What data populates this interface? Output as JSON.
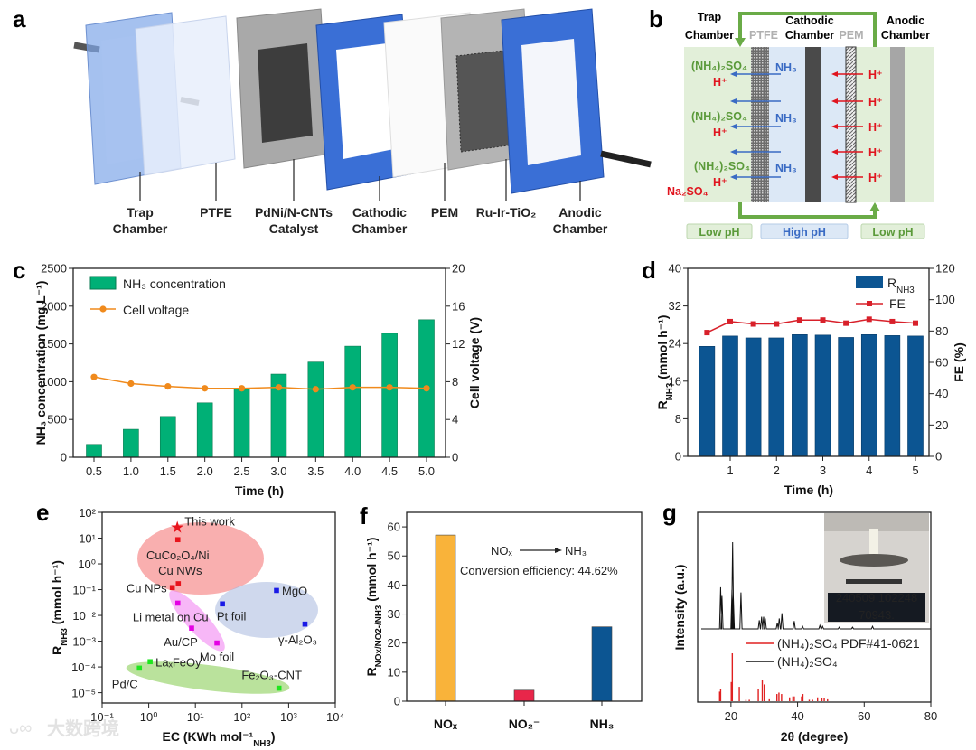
{
  "panel_labels": {
    "a": "a",
    "b": "b",
    "c": "c",
    "d": "d",
    "e": "e",
    "f": "f",
    "g": "g"
  },
  "panel_a": {
    "labels": [
      {
        "l1": "Trap",
        "l2": "Chamber"
      },
      {
        "l1": "PTFE",
        "l2": ""
      },
      {
        "l1": "PdNi/N-CNTs",
        "l2": "Catalyst"
      },
      {
        "l1": "Cathodic",
        "l2": "Chamber"
      },
      {
        "l1": "PEM",
        "l2": ""
      },
      {
        "l1": "Ru-Ir-TiO₂",
        "l2": ""
      },
      {
        "l1": "Anodic",
        "l2": "Chamber"
      }
    ]
  },
  "panel_b": {
    "trap": {
      "l1": "Trap",
      "l2": "Chamber"
    },
    "ptfe": "PTFE",
    "cathodic": {
      "l1": "Cathodic",
      "l2": "Chamber"
    },
    "pem": "PEM",
    "anodic": {
      "l1": "Anodic",
      "l2": "Chamber"
    },
    "ammonium_sulfate": "(NH₄)₂SO₄",
    "proton": "H⁺",
    "ammonia": "NH₃",
    "sodium_sulfate": "Na₂SO₄",
    "ph_left": "Low pH",
    "ph_mid": "High pH",
    "ph_right": "Low pH",
    "colors": {
      "green": "#5b9a3a",
      "blue": "#3a6bc4",
      "red": "#e0141e"
    }
  },
  "chart_data": [
    {
      "id": "c",
      "type": "bar+line",
      "x": [
        0.5,
        1.0,
        1.5,
        2.0,
        2.5,
        3.0,
        3.5,
        4.0,
        4.5,
        5.0
      ],
      "x_tick_labels": [
        "0.5",
        "1.0",
        "1.5",
        "2.0",
        "2.5",
        "3.0",
        "3.5",
        "4.0",
        "4.5",
        "5.0"
      ],
      "series": [
        {
          "name": "NH₃ concentration",
          "axis": "left",
          "type": "bar",
          "color": "#00b076",
          "values": [
            170,
            370,
            540,
            720,
            910,
            1100,
            1260,
            1470,
            1640,
            1820
          ]
        },
        {
          "name": "Cell voltage",
          "axis": "right",
          "type": "line",
          "color": "#f08a1c",
          "values": [
            8.5,
            7.8,
            7.5,
            7.3,
            7.3,
            7.4,
            7.2,
            7.4,
            7.4,
            7.3
          ]
        }
      ],
      "xlabel": "Time (h)",
      "ylabel": "NH₃ concentration (mg L⁻¹)",
      "y2label": "Cell voltage (V)",
      "ylim": [
        0,
        2500
      ],
      "yticks": [
        0,
        500,
        1000,
        1500,
        2000,
        2500
      ],
      "y2lim": [
        0,
        20
      ],
      "y2ticks": [
        0,
        4,
        8,
        12,
        16,
        20
      ],
      "legend": "top-left"
    },
    {
      "id": "d",
      "type": "bar+line",
      "x": [
        0.5,
        1.0,
        1.5,
        2.0,
        2.5,
        3.0,
        3.5,
        4.0,
        4.5,
        5.0
      ],
      "xticks": [
        1,
        2,
        3,
        4,
        5
      ],
      "series": [
        {
          "name": "R",
          "name_sub": "NH3",
          "axis": "left",
          "type": "bar",
          "color": "#0c5592",
          "values": [
            23.4,
            25.6,
            25.2,
            25.2,
            25.9,
            25.8,
            25.3,
            25.9,
            25.7,
            25.6
          ]
        },
        {
          "name": "FE",
          "axis": "right",
          "type": "line",
          "color": "#d8202a",
          "values": [
            79,
            86,
            84.5,
            84.5,
            87,
            87,
            85,
            87.5,
            86,
            85
          ]
        }
      ],
      "xlabel": "Time (h)",
      "ylabel": {
        "main": "R",
        "sub": "NH3",
        "unit": " (mmol h⁻¹)"
      },
      "y2label": "FE (%)",
      "ylim": [
        0,
        40
      ],
      "yticks": [
        0,
        8,
        16,
        24,
        32,
        40
      ],
      "y2lim": [
        0,
        120
      ],
      "y2ticks": [
        0,
        20,
        40,
        60,
        80,
        100,
        120
      ],
      "legend": "top-right"
    },
    {
      "id": "e",
      "type": "scatter",
      "xscale": "log",
      "yscale": "log",
      "points": [
        {
          "label": "This work",
          "x": 4.1,
          "y": 26,
          "color": "#e8141c",
          "marker": "star"
        },
        {
          "label": "CuCo₂O₄/Ni",
          "x": 4.2,
          "y": 8.7,
          "color": "#e8141c",
          "marker": "square"
        },
        {
          "label": "Cu NWs",
          "x": 4.3,
          "y": 0.17,
          "color": "#e8141c",
          "marker": "square"
        },
        {
          "label": "Cu NPs",
          "x": 3.2,
          "y": 0.12,
          "color": "#e8141c",
          "marker": "square"
        },
        {
          "label": "Li metal on Cu",
          "x": 4.2,
          "y": 0.03,
          "color": "#e400e4",
          "marker": "square"
        },
        {
          "label": "Au/CP",
          "x": 8.3,
          "y": 0.0032,
          "color": "#e400e4",
          "marker": "square"
        },
        {
          "label": "Mo foil",
          "x": 29,
          "y": 0.00085,
          "color": "#e400e4",
          "marker": "square"
        },
        {
          "label": "Pt foil",
          "x": 38,
          "y": 0.028,
          "color": "#1a1ae6",
          "marker": "square"
        },
        {
          "label": "MgO",
          "x": 550,
          "y": 0.093,
          "color": "#1a1ae6",
          "marker": "square"
        },
        {
          "label": "γ-Al₂O₃",
          "x": 2240,
          "y": 0.0046,
          "color": "#1a1ae6",
          "marker": "square"
        },
        {
          "label": "LaₓFeOy",
          "x": 1.07,
          "y": 0.00016,
          "color": "#1ee61e",
          "marker": "square"
        },
        {
          "label": "Pd/C",
          "x": 0.63,
          "y": 9e-05,
          "color": "#1ee61e",
          "marker": "square"
        },
        {
          "label": "Fe₂O₃-CNT",
          "x": 620,
          "y": 1.5e-05,
          "color": "#1ee61e",
          "marker": "square"
        }
      ],
      "xlabel": {
        "main": "EC (KWh mol⁻¹",
        "sub": "NH3",
        "end": ")"
      },
      "ylabel": {
        "main": "R",
        "sub": "NH3",
        "unit": " (mmol h⁻¹)"
      },
      "xlim_log10": [
        -1,
        4
      ],
      "ylim_log10": [
        -5.4,
        2
      ],
      "xtick_labels": [
        "10⁻¹",
        "10⁰",
        "10¹",
        "10²",
        "10³",
        "10⁴"
      ],
      "ytick_labels": [
        "10⁻⁵",
        "10⁻⁴",
        "10⁻³",
        "10⁻²",
        "10⁻¹",
        "10⁰",
        "10¹",
        "10²"
      ]
    },
    {
      "id": "f",
      "type": "bar",
      "categories": [
        "NOₓ",
        "NO₂⁻",
        "NH₃"
      ],
      "values": [
        57.2,
        3.8,
        25.6
      ],
      "colors": [
        "#f9b33a",
        "#e8264a",
        "#0c5592"
      ],
      "ylabel": {
        "main": "R",
        "sub": "NOx/NO2-/NH3",
        "unit": " (mmol h⁻¹)"
      },
      "ylim": [
        0,
        65
      ],
      "yticks": [
        0,
        10,
        20,
        30,
        40,
        50,
        60
      ],
      "annotation": {
        "from": "NOₓ",
        "to": "NH₃",
        "text": "Conversion efficiency: 44.62%"
      }
    },
    {
      "id": "g",
      "type": "line+stem",
      "xlabel": "2θ (degree)",
      "ylabel": "Intensity (a.u.)",
      "xlim": [
        10,
        80
      ],
      "xticks": [
        20,
        40,
        60,
        80
      ],
      "series": [
        {
          "name": "(NH₄)₂SO₄ PDF#41-0621",
          "type": "stem",
          "color": "#e02020",
          "peaks": [
            [
              16.6,
              0.2
            ],
            [
              16.9,
              0.25
            ],
            [
              20.1,
              0.4
            ],
            [
              20.4,
              1.0
            ],
            [
              22.5,
              0.3
            ],
            [
              24.5,
              0.03
            ],
            [
              25.5,
              0.03
            ],
            [
              28.2,
              0.25
            ],
            [
              29.4,
              0.45
            ],
            [
              30.0,
              0.35
            ],
            [
              31.5,
              0.04
            ],
            [
              33.8,
              0.15
            ],
            [
              34.4,
              0.18
            ],
            [
              35.2,
              0.15
            ],
            [
              37.6,
              0.08
            ],
            [
              38.6,
              0.1
            ],
            [
              39.0,
              0.1
            ],
            [
              41.2,
              0.1
            ],
            [
              41.6,
              0.15
            ],
            [
              43.5,
              0.03
            ],
            [
              44.5,
              0.03
            ],
            [
              46.0,
              0.08
            ],
            [
              47.3,
              0.06
            ],
            [
              48.0,
              0.06
            ],
            [
              49.0,
              0.04
            ]
          ]
        },
        {
          "name": "(NH₄)₂SO₄",
          "type": "line",
          "color": "#111111",
          "peaks": [
            [
              16.9,
              0.48
            ],
            [
              17.3,
              0.38
            ],
            [
              20.3,
              0.45
            ],
            [
              20.5,
              1.0
            ],
            [
              20.7,
              0.38
            ],
            [
              23.0,
              0.42
            ],
            [
              28.5,
              0.1
            ],
            [
              29.2,
              0.14
            ],
            [
              29.8,
              0.14
            ],
            [
              30.3,
              0.12
            ],
            [
              33.9,
              0.07
            ],
            [
              34.5,
              0.12
            ],
            [
              35.3,
              0.18
            ],
            [
              39.0,
              0.09
            ],
            [
              41.5,
              0.03
            ],
            [
              46.7,
              0.04
            ],
            [
              47.5,
              0.03
            ],
            [
              52.5,
              0.02
            ],
            [
              56.5,
              0.02
            ],
            [
              62.5,
              0.03
            ]
          ]
        }
      ],
      "inset_display": {
        "top": "240509  102248",
        "value": "70943."
      }
    }
  ],
  "watermark": "大数跨境"
}
